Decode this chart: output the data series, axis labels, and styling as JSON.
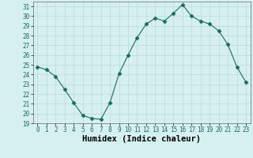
{
  "x": [
    0,
    1,
    2,
    3,
    4,
    5,
    6,
    7,
    8,
    9,
    10,
    11,
    12,
    13,
    14,
    15,
    16,
    17,
    18,
    19,
    20,
    21,
    22,
    23
  ],
  "y": [
    24.8,
    24.5,
    23.8,
    22.5,
    21.1,
    19.8,
    19.5,
    19.4,
    21.1,
    24.1,
    26.0,
    27.8,
    29.2,
    29.8,
    29.5,
    30.3,
    31.2,
    30.0,
    29.5,
    29.2,
    28.5,
    27.1,
    24.8,
    23.2
  ],
  "line_color": "#1a6b5a",
  "marker": "D",
  "marker_size": 2.5,
  "bg_color": "#d6f0f0",
  "grid_color": "#b8dada",
  "xlabel": "Humidex (Indice chaleur)",
  "ylim": [
    19,
    31.5
  ],
  "xlim": [
    -0.5,
    23.5
  ],
  "yticks": [
    19,
    20,
    21,
    22,
    23,
    24,
    25,
    26,
    27,
    28,
    29,
    30,
    31
  ],
  "xticks": [
    0,
    1,
    2,
    3,
    4,
    5,
    6,
    7,
    8,
    9,
    10,
    11,
    12,
    13,
    14,
    15,
    16,
    17,
    18,
    19,
    20,
    21,
    22,
    23
  ],
  "tick_fontsize": 5.5,
  "xlabel_fontsize": 7.5
}
